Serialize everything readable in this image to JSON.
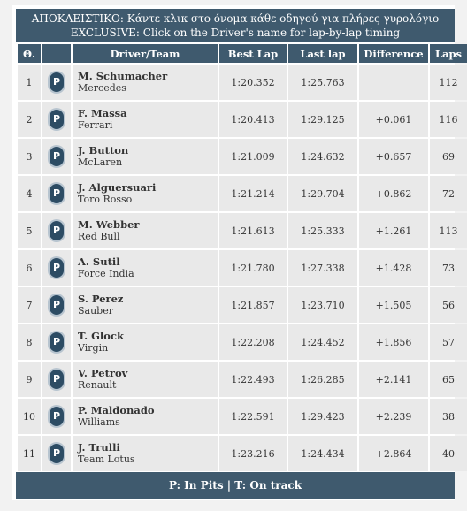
{
  "banner": {
    "line1": "ΑΠΟΚΛΕΙΣΤΙΚΟ: Κάντε κλικ στο όνομα κάθε οδηγού για πλήρες γυρολόγιο",
    "line2": "EXCLUSIVE: Click on the Driver's name for lap-by-lap timing"
  },
  "columns": [
    "Θ.",
    "",
    "Driver/Team",
    "Best Lap",
    "Last lap",
    "Difference",
    "Laps"
  ],
  "rows": [
    {
      "pos": "1",
      "status": "P",
      "driver": "M. Schumacher",
      "team": "Mercedes",
      "best": "1:20.352",
      "last": "1:25.763",
      "diff": "",
      "laps": "112"
    },
    {
      "pos": "2",
      "status": "P",
      "driver": "F. Massa",
      "team": "Ferrari",
      "best": "1:20.413",
      "last": "1:29.125",
      "diff": "+0.061",
      "laps": "116"
    },
    {
      "pos": "3",
      "status": "P",
      "driver": "J. Button",
      "team": "McLaren",
      "best": "1:21.009",
      "last": "1:24.632",
      "diff": "+0.657",
      "laps": "69"
    },
    {
      "pos": "4",
      "status": "P",
      "driver": "J. Alguersuari",
      "team": "Toro Rosso",
      "best": "1:21.214",
      "last": "1:29.704",
      "diff": "+0.862",
      "laps": "72"
    },
    {
      "pos": "5",
      "status": "P",
      "driver": "M. Webber",
      "team": "Red Bull",
      "best": "1:21.613",
      "last": "1:25.333",
      "diff": "+1.261",
      "laps": "113"
    },
    {
      "pos": "6",
      "status": "P",
      "driver": "A. Sutil",
      "team": "Force India",
      "best": "1:21.780",
      "last": "1:27.338",
      "diff": "+1.428",
      "laps": "73"
    },
    {
      "pos": "7",
      "status": "P",
      "driver": "S. Perez",
      "team": "Sauber",
      "best": "1:21.857",
      "last": "1:23.710",
      "diff": "+1.505",
      "laps": "56"
    },
    {
      "pos": "8",
      "status": "P",
      "driver": "T. Glock",
      "team": "Virgin",
      "best": "1:22.208",
      "last": "1:24.452",
      "diff": "+1.856",
      "laps": "57"
    },
    {
      "pos": "9",
      "status": "P",
      "driver": "V. Petrov",
      "team": "Renault",
      "best": "1:22.493",
      "last": "1:26.285",
      "diff": "+2.141",
      "laps": "65"
    },
    {
      "pos": "10",
      "status": "P",
      "driver": "P. Maldonado",
      "team": "Williams",
      "best": "1:22.591",
      "last": "1:29.423",
      "diff": "+2.239",
      "laps": "38"
    },
    {
      "pos": "11",
      "status": "P",
      "driver": "J. Trulli",
      "team": "Team Lotus",
      "best": "1:23.216",
      "last": "1:24.434",
      "diff": "+2.864",
      "laps": "40"
    }
  ],
  "footer": "P: In Pits | T: On track",
  "colors": {
    "header_bg": "#3f5a6e",
    "row_bg": "#e9e9e9",
    "pit_badge": "#2d4c64"
  }
}
